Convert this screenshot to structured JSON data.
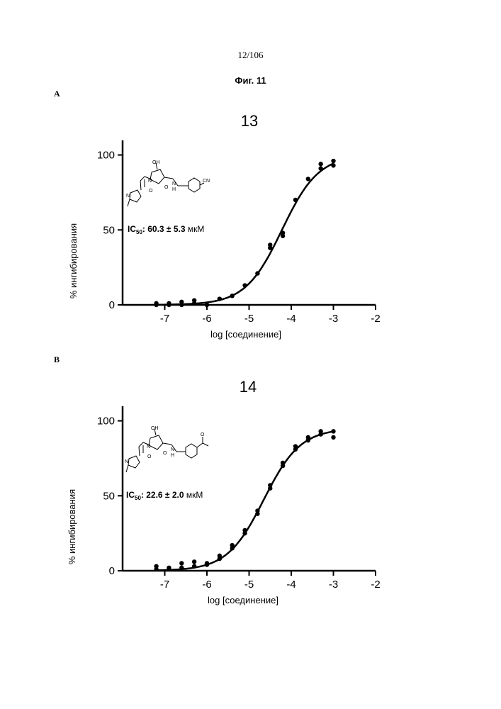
{
  "page": {
    "number": "12/106",
    "figure_title": "Фиг. 11"
  },
  "panels": [
    {
      "letter": "A",
      "compound": "13",
      "ic50_label": "IC",
      "ic50_sub": "50",
      "ic50_value": ": 60.3 ± 5.3",
      "ic50_unit": " мкМ",
      "structure_labels": {
        "oh": "OH",
        "n1": "N",
        "o1": "O",
        "n2": "N",
        "o2": "O",
        "nh": "H",
        "nh_n": "N",
        "sub": "CN"
      }
    },
    {
      "letter": "B",
      "compound": "14",
      "ic50_label": "IC",
      "ic50_sub": "50",
      "ic50_value": ": 22.6 ± 2.0",
      "ic50_unit": " мкМ",
      "structure_labels": {
        "oh": "OH",
        "n1": "N",
        "o1": "O",
        "n2": "N",
        "o2": "O",
        "nh": "H",
        "nh_n": "N",
        "sub": "O"
      }
    }
  ],
  "chart_data": [
    {
      "type": "scatter",
      "title": "13",
      "xlabel": "log [соединение]",
      "ylabel": "% ингибирования",
      "xlim": [
        -8,
        -2
      ],
      "ylim": [
        0,
        105
      ],
      "xticks": [
        -7,
        -6,
        -5,
        -4,
        -3,
        -2
      ],
      "xtick_labels": [
        "-7",
        "-6",
        "-5",
        "-4",
        "-3",
        "-2"
      ],
      "yticks": [
        0,
        50,
        100
      ],
      "ytick_labels": [
        "0",
        "50",
        "100"
      ],
      "series": [
        {
          "x": [
            -7.2,
            -7.2,
            -6.9,
            -6.9,
            -6.6,
            -6.6,
            -6.3,
            -6.3,
            -6.0,
            -5.7,
            -5.4,
            -5.1,
            -4.8,
            -4.5,
            -4.5,
            -4.2,
            -4.2,
            -3.9,
            -3.6,
            -3.3,
            -3.3,
            -3.0,
            -3.0
          ],
          "y": [
            0,
            1,
            0,
            1,
            0,
            2,
            1,
            3,
            0,
            4,
            6,
            13,
            21,
            38,
            40,
            46,
            48,
            70,
            84,
            91,
            94,
            93,
            96
          ],
          "fit": {
            "model": "sigmoid",
            "bottom": 0,
            "top": 100,
            "logIC50": -4.22,
            "hill": 1.0
          }
        }
      ]
    },
    {
      "type": "scatter",
      "title": "14",
      "xlabel": "log [соединение]",
      "ylabel": "% ингибирования",
      "xlim": [
        -8,
        -2
      ],
      "ylim": [
        0,
        105
      ],
      "xticks": [
        -7,
        -6,
        -5,
        -4,
        -3,
        -2
      ],
      "xtick_labels": [
        "-7",
        "-6",
        "-5",
        "-4",
        "-3",
        "-2"
      ],
      "yticks": [
        0,
        50,
        100
      ],
      "ytick_labels": [
        "0",
        "50",
        "100"
      ],
      "series": [
        {
          "x": [
            -7.2,
            -7.2,
            -6.9,
            -6.9,
            -6.6,
            -6.6,
            -6.3,
            -6.3,
            -6.0,
            -6.0,
            -5.7,
            -5.7,
            -5.4,
            -5.4,
            -5.1,
            -5.1,
            -4.8,
            -4.8,
            -4.5,
            -4.5,
            -4.2,
            -4.2,
            -3.9,
            -3.9,
            -3.6,
            -3.6,
            -3.3,
            -3.3,
            -3.0,
            -3.0
          ],
          "y": [
            1,
            3,
            1,
            2,
            2,
            5,
            3,
            6,
            4,
            5,
            8,
            10,
            15,
            17,
            25,
            27,
            38,
            40,
            55,
            57,
            70,
            72,
            81,
            83,
            87,
            89,
            91,
            93,
            89,
            93
          ],
          "fit": {
            "model": "sigmoid",
            "bottom": 0,
            "top": 95,
            "logIC50": -4.65,
            "hill": 1.0
          }
        }
      ]
    }
  ]
}
